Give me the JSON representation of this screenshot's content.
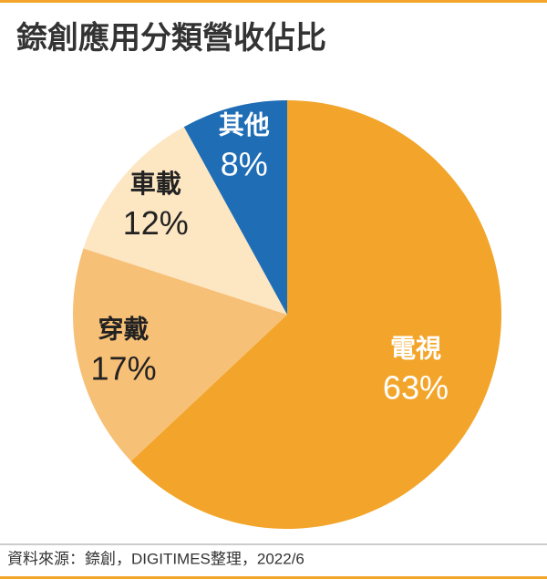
{
  "chart_data": {
    "type": "pie",
    "title": "錼創應用分類營收佔比",
    "categories": [
      "電視",
      "穿戴",
      "車載",
      "其他"
    ],
    "values": [
      63,
      17,
      12,
      8
    ],
    "value_labels": [
      "63%",
      "17%",
      "12%",
      "8%"
    ],
    "colors": [
      "#f2a52a",
      "#f7c077",
      "#fde6c2",
      "#1f6db5"
    ],
    "label_colors": [
      "#ffffff",
      "#222222",
      "#222222",
      "#ffffff"
    ],
    "source": "資料來源：錼創，DIGITIMES整理，2022/6"
  }
}
